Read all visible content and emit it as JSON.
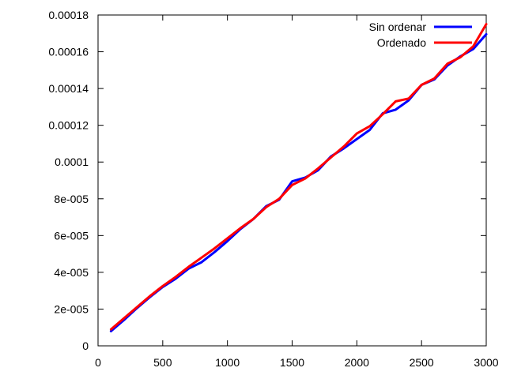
{
  "chart_data": {
    "type": "line",
    "title": "",
    "xlabel": "",
    "ylabel": "",
    "xlim": [
      0,
      3000
    ],
    "ylim": [
      0,
      0.00018
    ],
    "grid": false,
    "legend_position": "top-right",
    "x_ticks": [
      0,
      500,
      1000,
      1500,
      2000,
      2500,
      3000
    ],
    "x_tick_labels": [
      "0",
      "500",
      "1000",
      "1500",
      "2000",
      "2500",
      "3000"
    ],
    "y_ticks": [
      0,
      2e-05,
      4e-05,
      6e-05,
      8e-05,
      0.0001,
      0.00012,
      0.00014,
      0.00016,
      0.00018
    ],
    "y_tick_labels": [
      "0",
      "2e-005",
      "4e-005",
      "6e-005",
      "8e-005",
      "0.0001",
      "0.00012",
      "0.00014",
      "0.00016",
      "0.00018"
    ],
    "x": [
      100,
      200,
      300,
      400,
      500,
      600,
      700,
      800,
      900,
      1000,
      1100,
      1200,
      1300,
      1400,
      1500,
      1600,
      1700,
      1800,
      1900,
      2000,
      2100,
      2200,
      2300,
      2400,
      2500,
      2600,
      2700,
      2800,
      2900,
      3000
    ],
    "series": [
      {
        "name": "Sin ordenar",
        "color": "#0000ff",
        "values": [
          8e-06,
          1.4e-05,
          2.05e-05,
          2.65e-05,
          3.2e-05,
          3.65e-05,
          4.2e-05,
          4.55e-05,
          5.1e-05,
          5.7e-05,
          6.35e-05,
          6.9e-05,
          7.6e-05,
          7.95e-05,
          8.95e-05,
          9.15e-05,
          9.55e-05,
          0.000103,
          0.0001075,
          0.0001125,
          0.0001175,
          0.0001265,
          0.0001285,
          0.0001335,
          0.000142,
          0.000145,
          0.0001525,
          0.0001575,
          0.0001615,
          0.0001695
        ]
      },
      {
        "name": "Ordenado",
        "color": "#ff0000",
        "values": [
          9e-06,
          1.5e-05,
          2.1e-05,
          2.7e-05,
          3.25e-05,
          3.75e-05,
          4.3e-05,
          4.8e-05,
          5.3e-05,
          5.85e-05,
          6.4e-05,
          6.9e-05,
          7.55e-05,
          8e-05,
          8.75e-05,
          9.1e-05,
          9.65e-05,
          0.0001025,
          0.0001085,
          0.0001155,
          0.0001195,
          0.000126,
          0.000133,
          0.0001345,
          0.000142,
          0.0001455,
          0.0001535,
          0.000157,
          0.000163,
          0.000175
        ]
      }
    ]
  }
}
